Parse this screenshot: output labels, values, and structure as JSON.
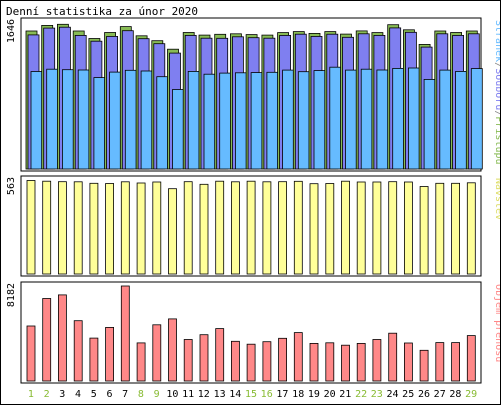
{
  "chart_data": {
    "type": "bar",
    "title": "Denní statistika za únor 2020",
    "categories": [
      "1",
      "2",
      "3",
      "4",
      "5",
      "6",
      "7",
      "8",
      "9",
      "10",
      "11",
      "12",
      "13",
      "14",
      "15",
      "16",
      "17",
      "18",
      "19",
      "20",
      "21",
      "22",
      "23",
      "24",
      "25",
      "26",
      "27",
      "28",
      "29"
    ],
    "weekend_days": [
      "1",
      "2",
      "8",
      "9",
      "15",
      "16",
      "22",
      "23",
      "29"
    ],
    "colors": {
      "pristupu": "#88bb55",
      "souboru": "#7f7ff0",
      "stranek": "#66bbff",
      "navstev": "#ffff99",
      "objem": "#ff8888",
      "weekday_label": "#000000",
      "weekend_label": "#88bb33",
      "border": "#000000"
    },
    "panels": [
      {
        "ymax_label": "1646",
        "ymax": 1646,
        "legend": [
          {
            "text": "Stránek",
            "color": "#66bbff"
          },
          {
            "text": "/",
            "color": "#888888"
          },
          {
            "text": "Souborů",
            "color": "#7f7ff0"
          },
          {
            "text": "/",
            "color": "#888888"
          },
          {
            "text": "Přístupů",
            "color": "#88bb55"
          }
        ],
        "series": [
          {
            "name": "Přístupů",
            "values": [
              1545,
              1608,
              1620,
              1545,
              1461,
              1528,
              1594,
              1492,
              1437,
              1341,
              1528,
              1499,
              1508,
              1514,
              1505,
              1499,
              1527,
              1538,
              1518,
              1538,
              1510,
              1546,
              1527,
              1616,
              1559,
              1395,
              1545,
              1528,
              1545
            ]
          },
          {
            "name": "Souborů",
            "values": [
              1502,
              1578,
              1588,
              1496,
              1431,
              1485,
              1549,
              1459,
              1403,
              1298,
              1496,
              1465,
              1464,
              1480,
              1470,
              1465,
              1496,
              1509,
              1485,
              1509,
              1475,
              1514,
              1496,
              1580,
              1531,
              1365,
              1514,
              1496,
              1514
            ]
          },
          {
            "name": "Stránek",
            "values": [
              1092,
              1117,
              1112,
              1108,
              1023,
              1085,
              1105,
              1097,
              1033,
              890,
              1093,
              1062,
              1074,
              1077,
              1079,
              1083,
              1107,
              1090,
              1102,
              1140,
              1107,
              1117,
              1109,
              1127,
              1131,
              1003,
              1107,
              1093,
              1124
            ]
          }
        ]
      },
      {
        "ymax_label": "563",
        "ymax": 563,
        "legend": [
          {
            "text": "Návštěv",
            "color": "#ffff99"
          }
        ],
        "series": [
          {
            "name": "Návštěv",
            "values": [
              560,
              556,
              553,
              552,
              543,
              542,
              552,
              545,
              551,
              511,
              553,
              537,
              556,
              552,
              556,
              552,
              553,
              555,
              541,
              542,
              556,
              551,
              551,
              553,
              551,
              524,
              543,
              543,
              546
            ]
          }
        ]
      },
      {
        "ymax_label": "8182",
        "ymax": 8182,
        "legend": [
          {
            "text": "Objem přenosu",
            "color": "#ff8888"
          }
        ],
        "series": [
          {
            "name": "Objem přenosu",
            "values": [
              4740,
              7106,
              7417,
              5196,
              3697,
              4619,
              8182,
              3280,
              4843,
              5346,
              3572,
              3985,
              4517,
              3419,
              3167,
              3389,
              3679,
              4165,
              3240,
              3291,
              3087,
              3240,
              3572,
              4121,
              3271,
              2646,
              3311,
              3311,
              3913
            ]
          }
        ]
      }
    ]
  }
}
